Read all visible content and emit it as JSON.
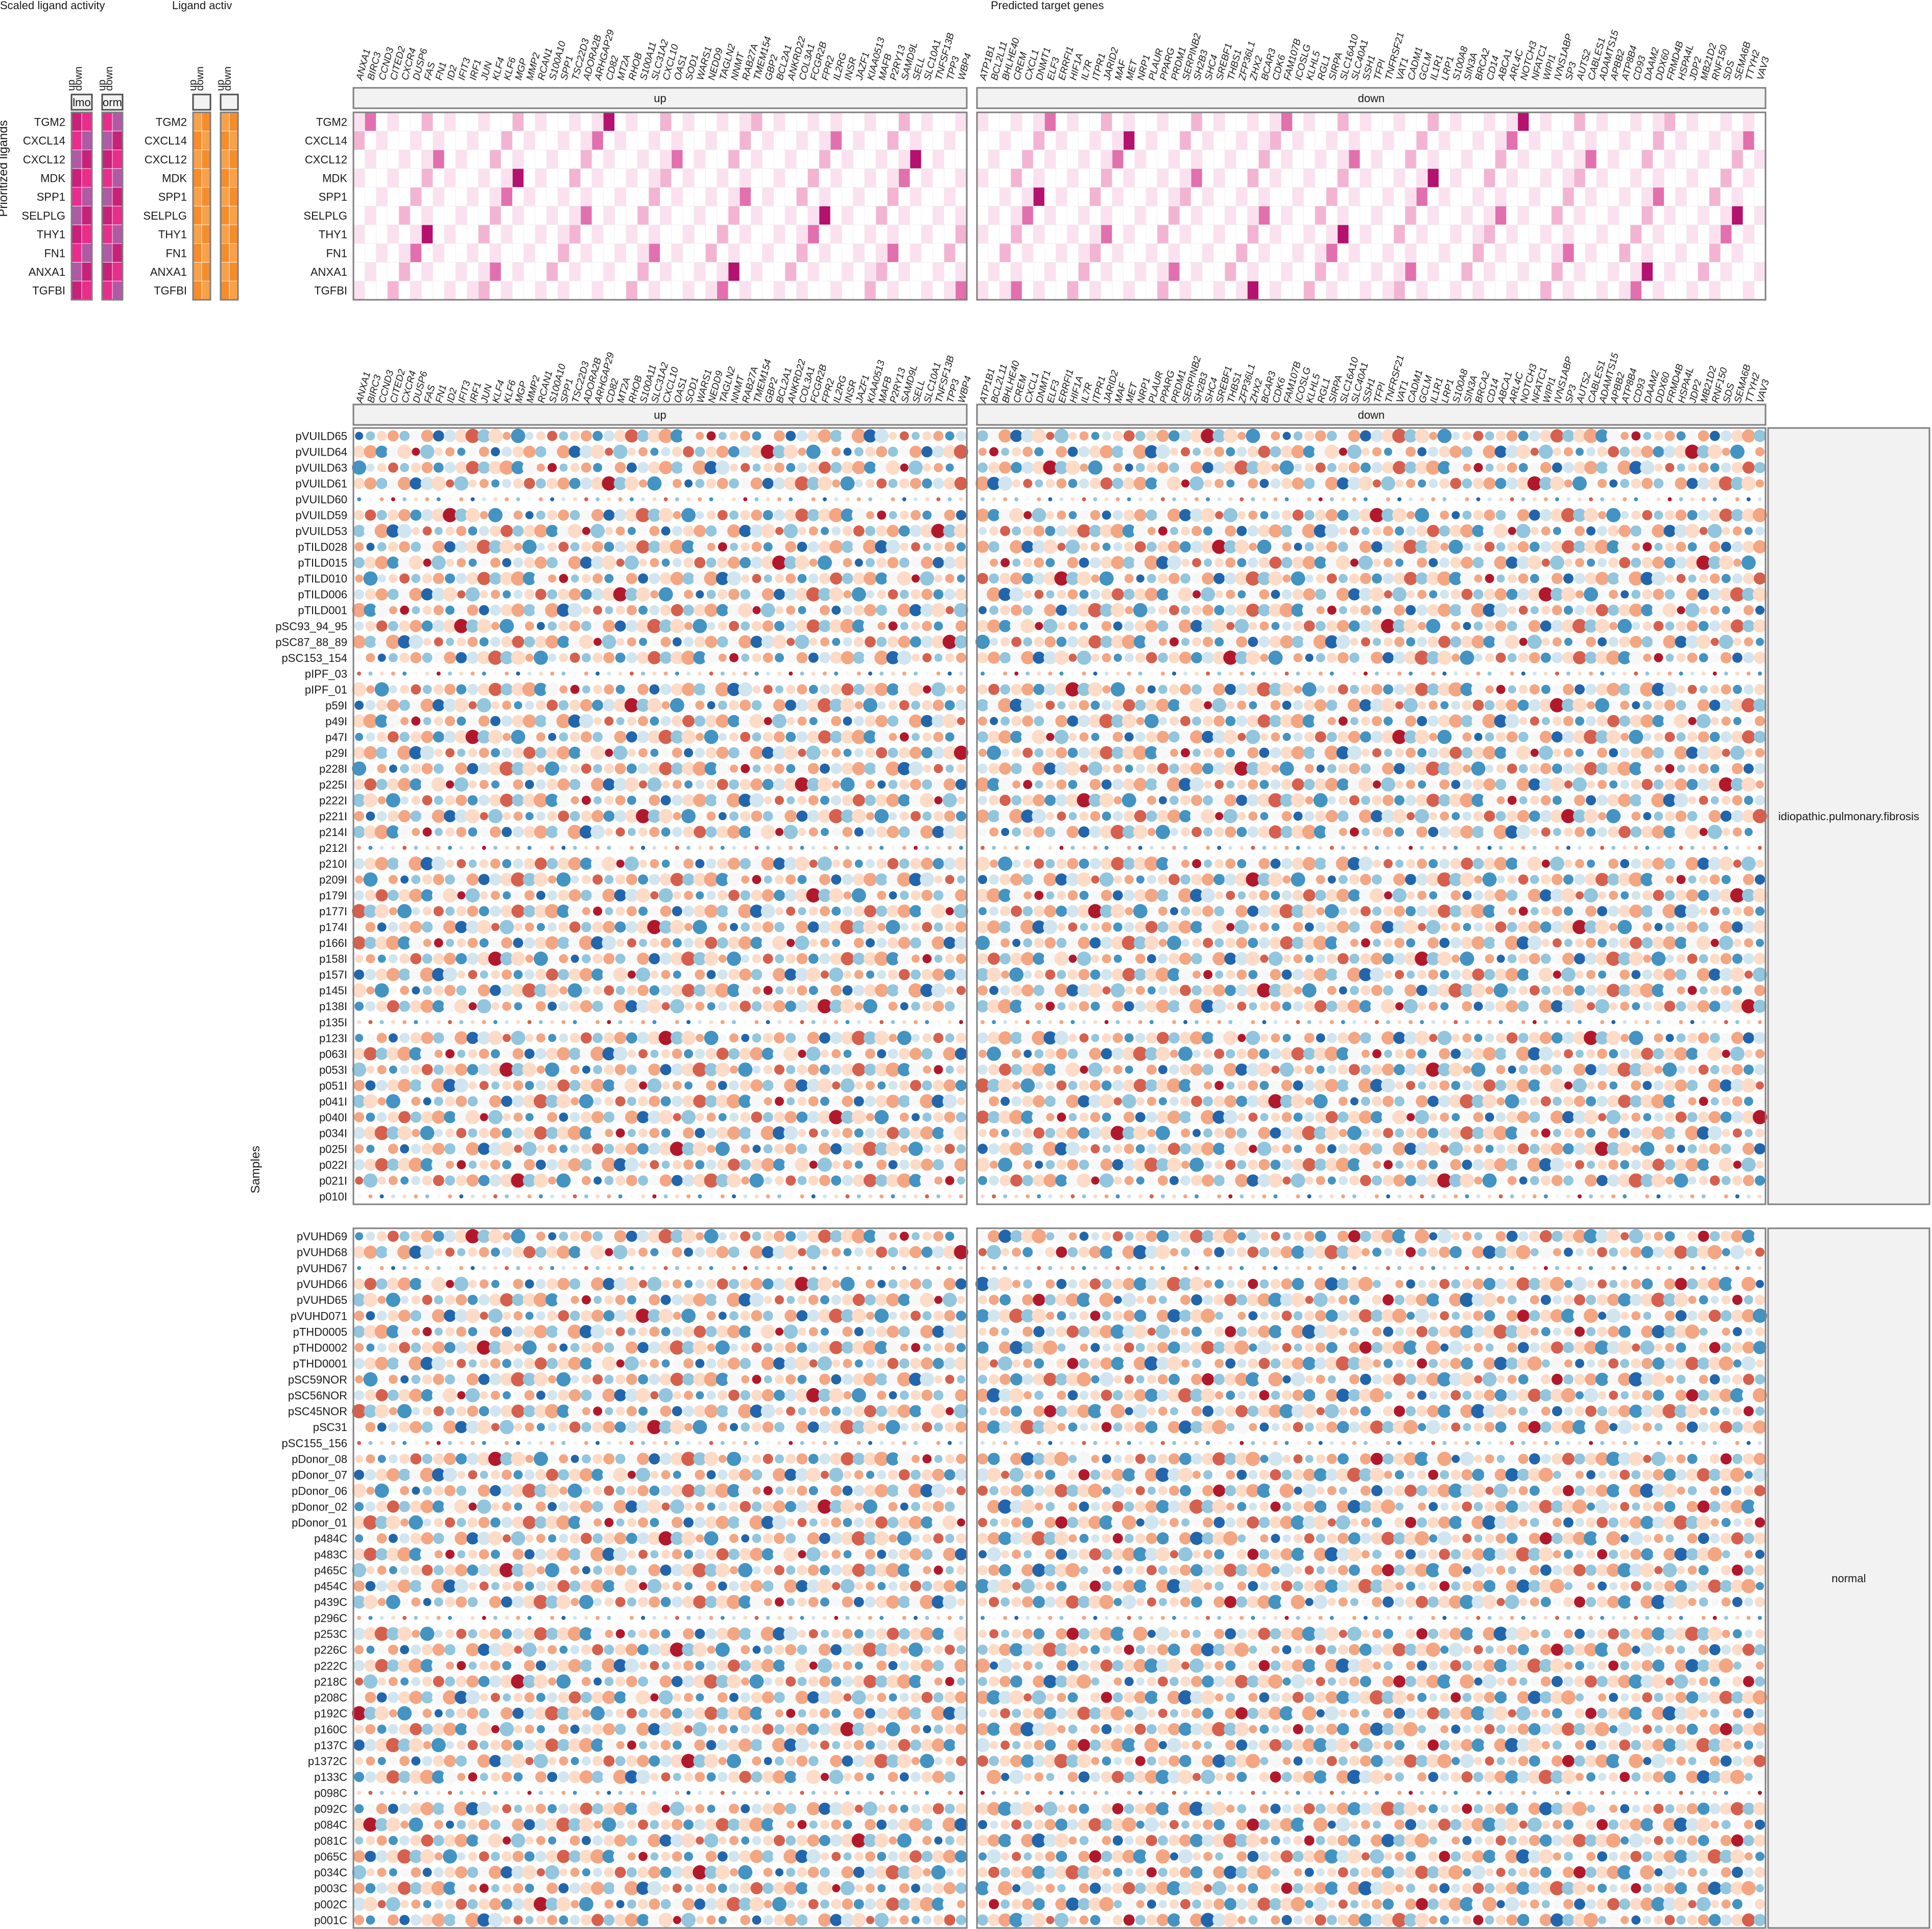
{
  "chart_data": [
    {
      "type": "heatmap",
      "title": "Scaled ligand activity",
      "ylabel": "Prioritized ligands",
      "ligands": [
        "TGM2",
        "CXCL14",
        "CXCL12",
        "MDK",
        "SPP1",
        "SELPLG",
        "THY1",
        "FN1",
        "ANXA1",
        "TGFBI"
      ],
      "columns": [
        "up",
        "down"
      ],
      "facets": [
        "idiopathic.pulmonary.fibrosis",
        "normal"
      ],
      "facet_tags": [
        "lmo",
        "orm"
      ],
      "colors": [
        "#c8217a",
        "#e82d8b",
        "#b05aa6",
        "#d9b3d6"
      ]
    },
    {
      "type": "heatmap",
      "title": "Ligand activ",
      "ligands": [
        "TGM2",
        "CXCL14",
        "CXCL12",
        "MDK",
        "SPP1",
        "SELPLG",
        "THY1",
        "FN1",
        "ANXA1",
        "TGFBI"
      ],
      "columns": [
        "up",
        "down"
      ],
      "colors": [
        "#f7a14a",
        "#f58d2b"
      ]
    },
    {
      "type": "heatmap",
      "title": "Predicted target genes",
      "ligands": [
        "TGM2",
        "CXCL14",
        "CXCL12",
        "MDK",
        "SPP1",
        "SELPLG",
        "THY1",
        "FN1",
        "ANXA1",
        "TGFBI"
      ],
      "panels": [
        "up",
        "down"
      ],
      "genes_up": [
        "ANXA1",
        "BIRC3",
        "CCND3",
        "CITED2",
        "CXCR4",
        "DUSP6",
        "FAS",
        "FN1",
        "ID2",
        "IFIT3",
        "IRF1",
        "JUN",
        "KLF4",
        "KLF6",
        "MGP",
        "MMP2",
        "RCAN1",
        "S100A10",
        "SPP1",
        "TSC22D3",
        "ADORA2B",
        "ARHGAP29",
        "CD82",
        "MT2A",
        "RHOB",
        "S100A11",
        "SLC31A2",
        "CXCL10",
        "OAS1",
        "SOD1",
        "WARS1",
        "NEDD9",
        "TAGLN2",
        "NNMT",
        "RAB27A",
        "TMEM154",
        "GBP2",
        "BCL2A1",
        "ANKRD22",
        "COL3A1",
        "FCGR2B",
        "FPR2",
        "IL2RG",
        "INSR",
        "JAZF1",
        "KIAA0513",
        "MAFB",
        "P2RY13",
        "SAMD9L",
        "SELL",
        "SLC10A1",
        "TNFSF13B",
        "TPP3",
        "WBP4"
      ],
      "genes_down": [
        "ATP1B1",
        "BCL2L11",
        "BHLHE40",
        "CREM",
        "CXCL1",
        "DNMT1",
        "ELF3",
        "ERRFI1",
        "HIF1A",
        "IL7R",
        "ITPR1",
        "JARID2",
        "MAF",
        "MET",
        "NRP1",
        "PLAUR",
        "PPARG",
        "PRDM1",
        "SERPINB2",
        "SH2B3",
        "SHC4",
        "SREBF1",
        "THBS1",
        "ZFP36L1",
        "ZHX2",
        "BCAR3",
        "CDK6",
        "FAM107B",
        "ICOSLG",
        "KLHL5",
        "RGL1",
        "SIRPA",
        "SLC16A10",
        "SLC40A1",
        "SSH1",
        "TFPI",
        "TNFRSF21",
        "VAT1",
        "CADM1",
        "GCLM",
        "IL1R1",
        "LRP1",
        "S100A8",
        "SIN3A",
        "BRCA2",
        "CD14",
        "ABCA1",
        "ARL4C",
        "NOTCH3",
        "NFATC1",
        "WIPI1",
        "IVNS1ABP",
        "SP3",
        "AUTS2",
        "CABLES1",
        "ADAMTS15",
        "APBB2",
        "ATP8B4",
        "CD93",
        "DAAM2",
        "DDX60",
        "FRMD4B",
        "HSPA4L",
        "JDP2",
        "MB21D2",
        "RNF150",
        "SDS",
        "SEMA6B",
        "TTYH2",
        "VAV3"
      ],
      "colors": [
        "#ffffff",
        "#fbe1ef",
        "#f3b4d3",
        "#e270ae",
        "#b5116e"
      ]
    },
    {
      "type": "scatter",
      "ylabel": "Samples",
      "facets": [
        "idiopathic.pulmonary.fibrosis",
        "normal"
      ],
      "panels": [
        "up",
        "down"
      ],
      "samples_ipf": [
        "pVUILD65",
        "pVUILD64",
        "pVUILD63",
        "pVUILD61",
        "pVUILD60",
        "pVUILD59",
        "pVUILD53",
        "pTILD028",
        "pTILD015",
        "pTILD010",
        "pTILD006",
        "pTILD001",
        "pSC93_94_95",
        "pSC87_88_89",
        "pSC153_154",
        "pIPF_03",
        "pIPF_01",
        "p59I",
        "p49I",
        "p47I",
        "p29I",
        "p228I",
        "p225I",
        "p222I",
        "p221I",
        "p214I",
        "p212I",
        "p210I",
        "p209I",
        "p179I",
        "p177I",
        "p174I",
        "p166I",
        "p158I",
        "p157I",
        "p145I",
        "p138I",
        "p135I",
        "p123I",
        "p063I",
        "p053I",
        "p051I",
        "p041I",
        "p040I",
        "p034I",
        "p025I",
        "p022I",
        "p021I",
        "p010I"
      ],
      "samples_normal": [
        "pVUHD69",
        "pVUHD68",
        "pVUHD67",
        "pVUHD66",
        "pVUHD65",
        "pVUHD071",
        "pTHD0005",
        "pTHD0002",
        "pTHD0001",
        "pSC59NOR",
        "pSC56NOR",
        "pSC45NOR",
        "pSC31",
        "pSC155_156",
        "pDonor_08",
        "pDonor_07",
        "pDonor_06",
        "pDonor_02",
        "pDonor_01",
        "p484C",
        "p483C",
        "p465C",
        "p454C",
        "p439C",
        "p296C",
        "p253C",
        "p226C",
        "p222C",
        "p218C",
        "p208C",
        "p192C",
        "p160C",
        "p137C",
        "p1372C",
        "p133C",
        "p098C",
        "p092C",
        "p084C",
        "p081C",
        "p065C",
        "p034C",
        "p003C",
        "p002C",
        "p001C"
      ],
      "colors": [
        "#2166ac",
        "#4393c3",
        "#92c5de",
        "#d1e5f0",
        "#f7f7f7",
        "#fddbc7",
        "#f4a582",
        "#d6604d",
        "#b2182b"
      ]
    }
  ]
}
